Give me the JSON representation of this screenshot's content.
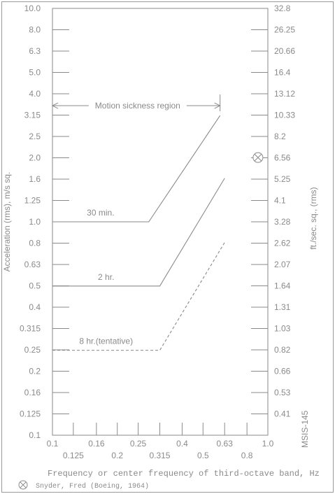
{
  "chart_data": {
    "type": "line",
    "x_scale": "log",
    "y_scale": "log",
    "xlim": [
      0.1,
      1.0
    ],
    "ylim": [
      0.1,
      10.0
    ],
    "y_ticks_left": [
      "10.0",
      "8.0",
      "6.3",
      "5.0",
      "4.0",
      "3.15",
      "2.5",
      "2.0",
      "1.6",
      "1.25",
      "1.0",
      "0.8",
      "0.63",
      "0.5",
      "0.4",
      "0.315",
      "0.25",
      "0.2",
      "0.16",
      "0.125",
      "0.1"
    ],
    "y_ticks_right": [
      "32.8",
      "26.25",
      "20.66",
      "16.4",
      "13.12",
      "10.33",
      "8.2",
      "6.56",
      "5.25",
      "4.1",
      "3.28",
      "2.62",
      "2.07",
      "1.64",
      "1.31",
      "1.03",
      "0.82",
      "0.66",
      "0.53",
      "0.41"
    ],
    "x_ticks_upper": [
      "0.1",
      "0.16",
      "0.25",
      "0.4",
      "0.63",
      "1.0"
    ],
    "x_ticks_lower": [
      "0.125",
      "0.2",
      "0.315",
      "0.5",
      "0.8"
    ],
    "xlabel": "Frequency or center frequency of third-octave band, Hz",
    "ylabel_left": "Acceleration (rms), m/s sq.",
    "ylabel_right": "ft./sec. sq., (rms)",
    "series": [
      {
        "name": "30 min.",
        "style": "solid",
        "x": [
          0.1,
          0.28,
          0.6
        ],
        "y": [
          1.0,
          1.0,
          3.15
        ]
      },
      {
        "name": "2 hr.",
        "style": "solid",
        "x": [
          0.1,
          0.315,
          0.63
        ],
        "y": [
          0.5,
          0.5,
          1.6
        ]
      },
      {
        "name": "8 hr.(tentative)",
        "style": "dashed",
        "x": [
          0.1,
          0.315,
          0.63
        ],
        "y": [
          0.25,
          0.25,
          0.8
        ]
      }
    ],
    "data_point": {
      "x": 0.9,
      "y": 2.0,
      "marker": "circle-x"
    },
    "annotations": {
      "region_label": "Motion sickness region",
      "region_x_range": [
        0.1,
        0.6
      ],
      "region_y": 3.5
    }
  },
  "figure_id": "MSIS-145",
  "legend_text": "Snyder, Fred (Boeing, 1964)"
}
